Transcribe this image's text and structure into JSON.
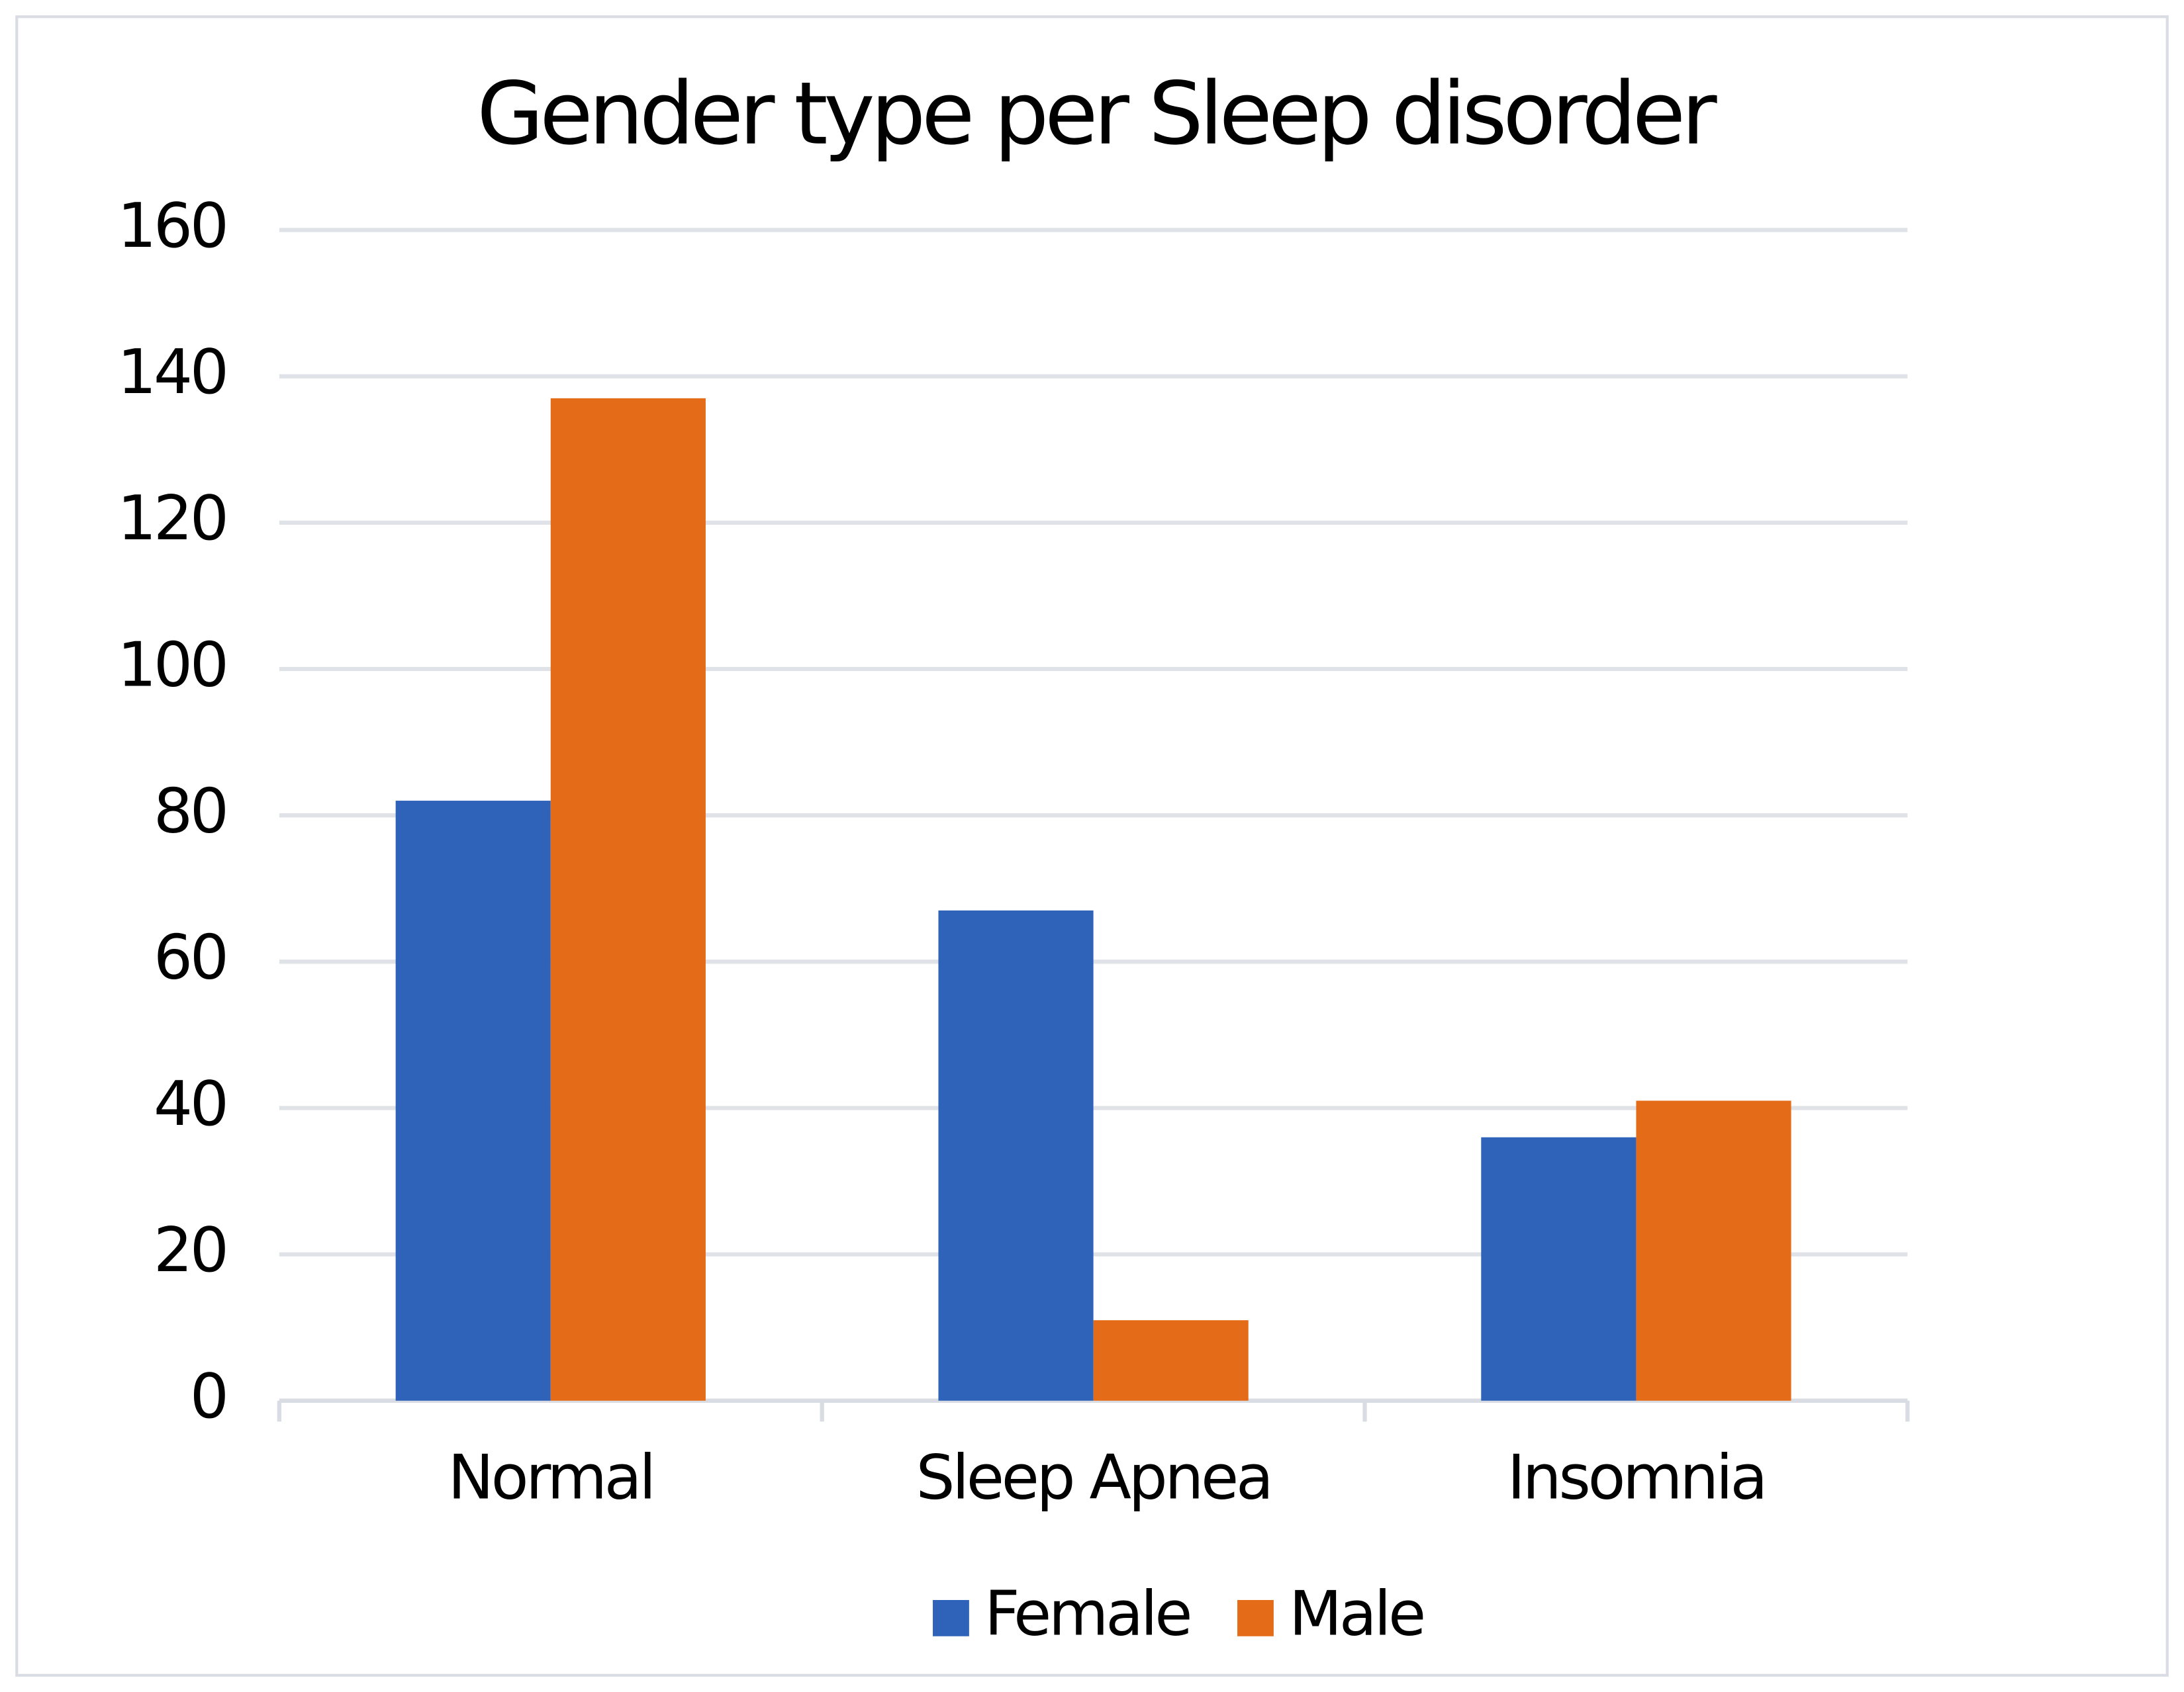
{
  "chart_data": {
    "type": "bar",
    "title": "Gender type per Sleep disorder",
    "categories": [
      "Normal",
      "Sleep Apnea",
      "Insomnia"
    ],
    "series": [
      {
        "name": "Female",
        "color": "#2f62b9",
        "values": [
          82,
          67,
          36
        ]
      },
      {
        "name": "Male",
        "color": "#e46c19",
        "values": [
          137,
          11,
          41
        ]
      }
    ],
    "ylim": [
      0,
      160
    ],
    "yticks": [
      0,
      20,
      40,
      60,
      80,
      100,
      120,
      140,
      160
    ],
    "grid": true,
    "legend": "bottom"
  }
}
